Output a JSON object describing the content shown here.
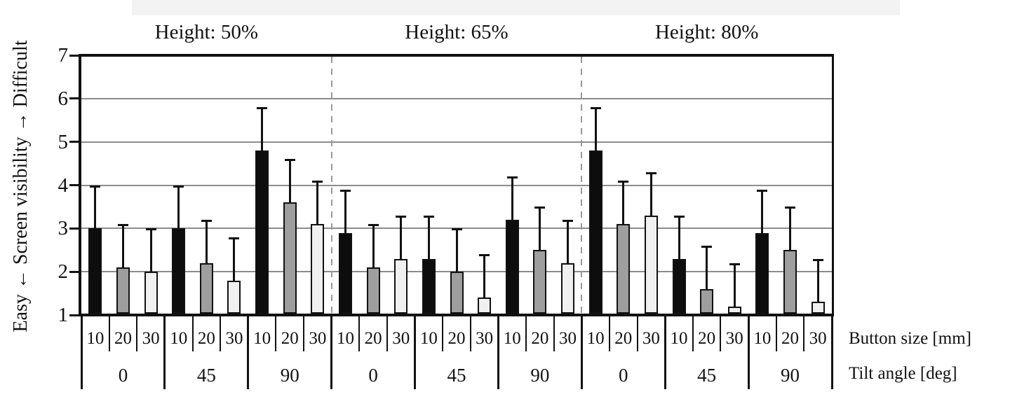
{
  "figure": {
    "background_color": "#ffffff",
    "scan_band_color": "#f3f3f3"
  },
  "chart_data": {
    "type": "bar",
    "title": "",
    "y_axis": {
      "label": "Easy ← Screen visibility → Difficult",
      "label_low": "Easy",
      "label_mid": "Screen visibility",
      "label_high": "Difficult",
      "min": 1,
      "max": 7,
      "ticks": [
        1,
        2,
        3,
        4,
        5,
        6,
        7
      ],
      "grid": true
    },
    "x_axis": {
      "row1_label": "Button size [mm]",
      "row2_label": "Tilt angle [deg]",
      "button_sizes": [
        "10",
        "20",
        "30"
      ],
      "tilt_angles": [
        "0",
        "45",
        "90"
      ]
    },
    "bar_colors": {
      "size_10": "#0d0d0d",
      "size_20": "#9e9e9e",
      "size_30": "#f0f0f0",
      "outline": "#111111"
    },
    "error_bars": {
      "direction": "upper",
      "length": 1.0
    },
    "panels": [
      {
        "header": "Height: 50%",
        "groups": [
          {
            "tilt": "0",
            "values": [
              3.0,
              2.1,
              2.0
            ],
            "errors": [
              1.0,
              1.0,
              1.0
            ]
          },
          {
            "tilt": "45",
            "values": [
              3.0,
              2.2,
              1.8
            ],
            "errors": [
              1.0,
              1.0,
              1.0
            ]
          },
          {
            "tilt": "90",
            "values": [
              4.8,
              3.6,
              3.1
            ],
            "errors": [
              1.0,
              1.0,
              1.0
            ]
          }
        ]
      },
      {
        "header": "Height: 65%",
        "groups": [
          {
            "tilt": "0",
            "values": [
              2.9,
              2.1,
              2.3
            ],
            "errors": [
              1.0,
              1.0,
              1.0
            ]
          },
          {
            "tilt": "45",
            "values": [
              2.3,
              2.0,
              1.4
            ],
            "errors": [
              1.0,
              1.0,
              1.0
            ]
          },
          {
            "tilt": "90",
            "values": [
              3.2,
              2.5,
              2.2
            ],
            "errors": [
              1.0,
              1.0,
              1.0
            ]
          }
        ]
      },
      {
        "header": "Height: 80%",
        "groups": [
          {
            "tilt": "0",
            "values": [
              4.8,
              3.1,
              3.3
            ],
            "errors": [
              1.0,
              1.0,
              1.0
            ]
          },
          {
            "tilt": "45",
            "values": [
              2.3,
              1.6,
              1.2
            ],
            "errors": [
              1.0,
              1.0,
              1.0
            ]
          },
          {
            "tilt": "90",
            "values": [
              2.9,
              2.5,
              1.3
            ],
            "errors": [
              1.0,
              1.0,
              1.0
            ]
          }
        ]
      }
    ]
  }
}
